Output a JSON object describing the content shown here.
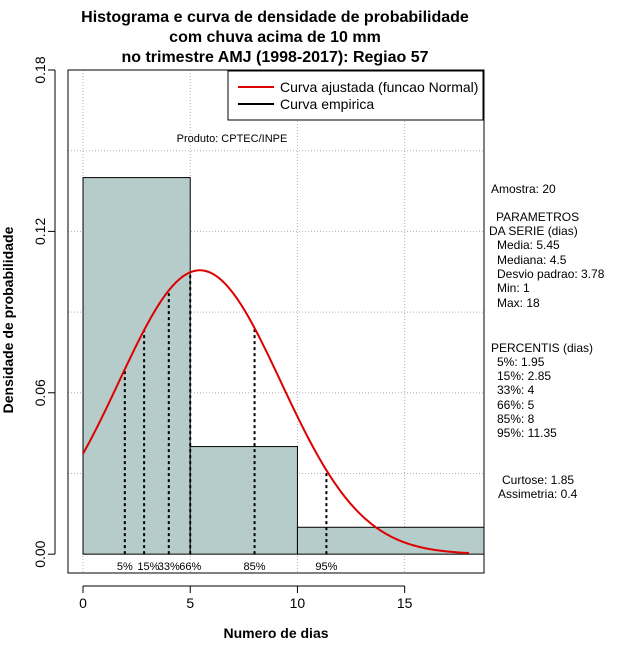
{
  "chart_data": {
    "type": "bar",
    "title": [
      "Histograma e curva de densidade de probabilidade",
      "com chuva acima de 10 mm",
      "no trimestre AMJ (1998-2017): Regiao 57"
    ],
    "xlabel": "Numero de dias",
    "ylabel": "Densidade de probabilidade",
    "xlim": [
      -0.7,
      18.7
    ],
    "ylim": [
      -0.007,
      0.18
    ],
    "xticks": [
      0,
      5,
      10,
      15
    ],
    "yticks": [
      0.0,
      0.06,
      0.12,
      0.18
    ],
    "xtick_labels": [
      "0",
      "5",
      "10",
      "15"
    ],
    "ytick_labels": [
      "0.00",
      "0.06",
      "0.12",
      "0.18"
    ],
    "bins": [
      {
        "x0": 0,
        "x1": 5,
        "density": 0.14
      },
      {
        "x0": 5,
        "x1": 10,
        "density": 0.04
      },
      {
        "x0": 10,
        "x1": 19,
        "density": 0.01
      }
    ],
    "normal_fit": {
      "mean": 5.45,
      "sd": 3.78,
      "from": 0,
      "to": 18
    },
    "percentile_lines": [
      1.95,
      2.85,
      4,
      5,
      8,
      11.35
    ],
    "percentile_labels": [
      {
        "text": "5%",
        "x": 1.95
      },
      {
        "text": "15%",
        "x": 3.05
      },
      {
        "text": "33%",
        "x": 4.0
      },
      {
        "text": "66%",
        "x": 5.0
      },
      {
        "text": "85%",
        "x": 8.0
      },
      {
        "text": "95%",
        "x": 11.35
      }
    ],
    "product_note": "Produto: CPTEC/INPE",
    "legend": {
      "position": "top-right",
      "entries": [
        {
          "label": "Curva ajustada (funcao Normal)",
          "color": "#dd0000"
        },
        {
          "label": "Curva empirica",
          "color": "#000000"
        }
      ]
    },
    "colors": {
      "bar_fill": "#b5cccb",
      "curve": "#dd0000",
      "grid": "#b0b0b0"
    }
  },
  "stats_panel": {
    "amostra": "Amostra: 20",
    "param_title1": "PARAMETROS",
    "param_title2": "DA SERIE (dias)",
    "media": "Media: 5.45",
    "mediana": "Mediana: 4.5",
    "desvio": "Desvio padrao: 3.78",
    "min": "Min: 1",
    "max": "Max: 18",
    "percentis_title": "PERCENTIS (dias)",
    "p5": "5%: 1.95",
    "p15": "15%: 2.85",
    "p33": "33%: 4",
    "p66": "66%: 5",
    "p85": "85%: 8",
    "p95": "95%: 11.35",
    "curtose": "Curtose: 1.85",
    "assimetria": "Assimetria: 0.4"
  }
}
